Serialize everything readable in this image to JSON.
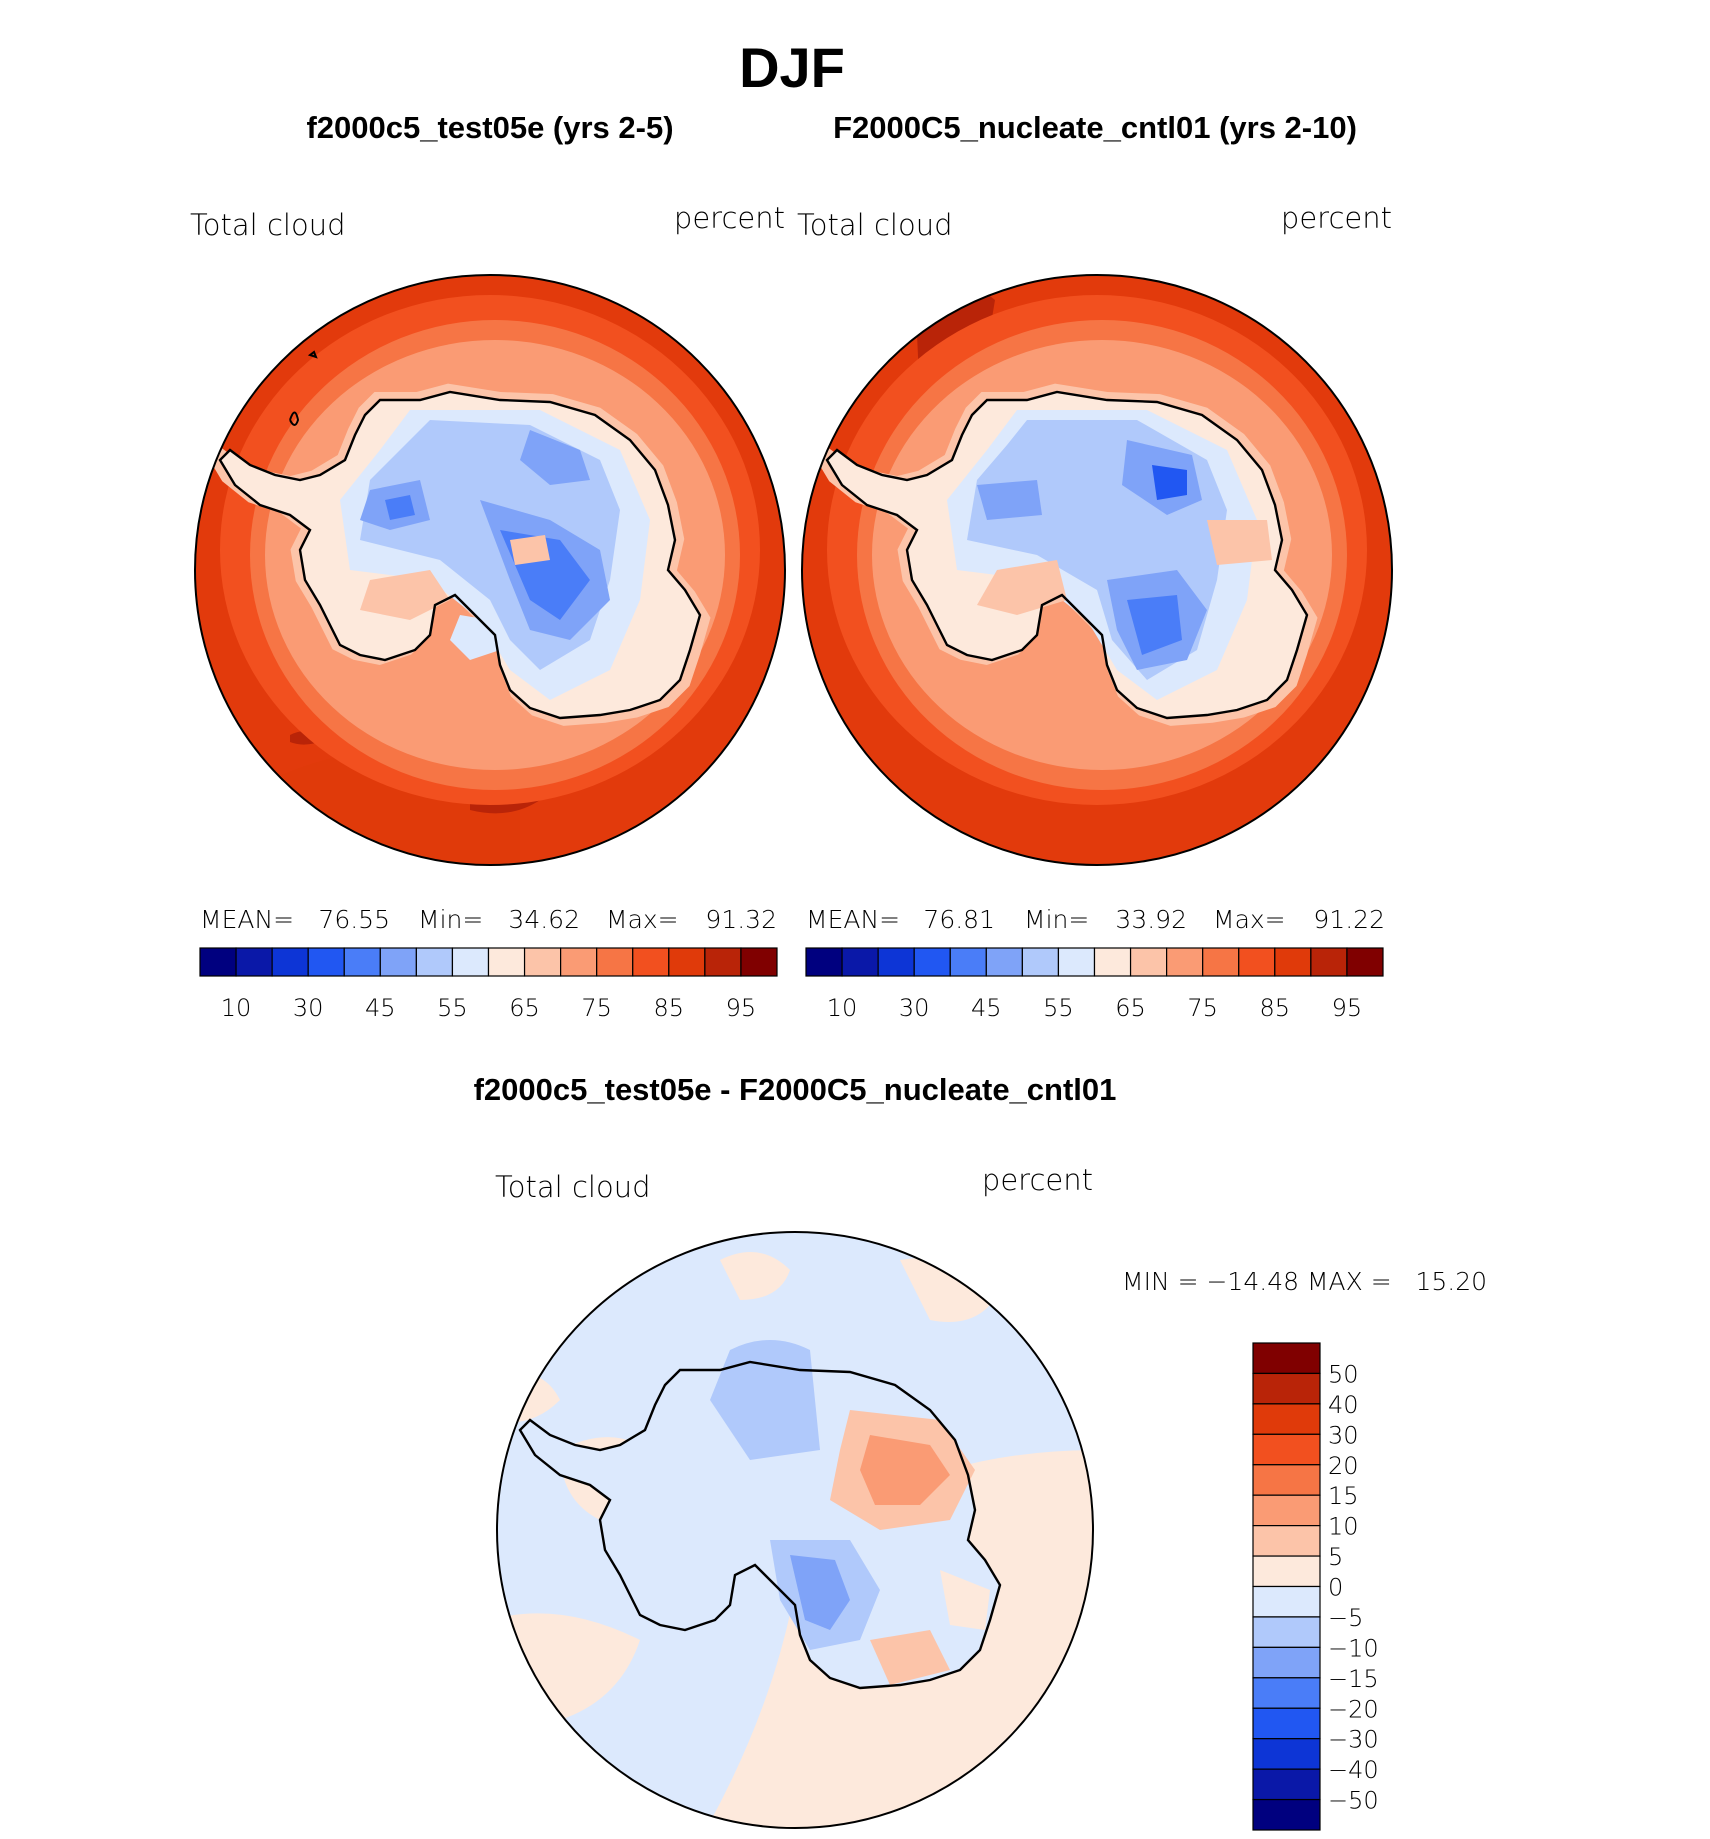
{
  "figure": {
    "title": "DJF",
    "diff_title": "f2000c5_test05e - F2000C5_nucleate_cntl01"
  },
  "colors": {
    "levels": [
      "#00007f",
      "#0a18a8",
      "#0d35d6",
      "#2157f2",
      "#4a7df8",
      "#7fa3f8",
      "#b0c9fb",
      "#dce9fd",
      "#fde9dc",
      "#fcc4a9",
      "#fa9b74",
      "#f67545",
      "#f2501f",
      "#e03a0a",
      "#b92408",
      "#800000"
    ],
    "ocean_high": "#e23a0c",
    "ocean_mid": "#f2501f",
    "ocean_dark": "#b92408"
  },
  "chart_data": [
    {
      "type": "heatmap",
      "projection": "south-polar-stereographic",
      "title": "f2000c5_test05e (yrs 2-5)",
      "left_label": "Total cloud",
      "right_label": "percent",
      "stats": {
        "mean_label": "MEAN=",
        "mean": "76.55",
        "min_label": "Min=",
        "min": "34.62",
        "max_label": "Max=",
        "max": "91.32"
      },
      "colorbar": {
        "orientation": "horizontal",
        "tick_labels": [
          "10",
          "30",
          "45",
          "55",
          "65",
          "75",
          "85",
          "95"
        ]
      }
    },
    {
      "type": "heatmap",
      "projection": "south-polar-stereographic",
      "title": "F2000C5_nucleate_cntl01 (yrs 2-10)",
      "left_label": "Total cloud",
      "right_label": "percent",
      "stats": {
        "mean_label": "MEAN=",
        "mean": "76.81",
        "min_label": "Min=",
        "min": "33.92",
        "max_label": "Max=",
        "max": "91.22"
      },
      "colorbar": {
        "orientation": "horizontal",
        "tick_labels": [
          "10",
          "30",
          "45",
          "55",
          "65",
          "75",
          "85",
          "95"
        ]
      }
    },
    {
      "type": "heatmap",
      "projection": "south-polar-stereographic",
      "title": "f2000c5_test05e - F2000C5_nucleate_cntl01",
      "left_label": "Total cloud",
      "right_label": "percent",
      "range_text": "MIN = −14.48 MAX =   15.20",
      "min": -14.48,
      "max": 15.2,
      "colorbar": {
        "orientation": "vertical",
        "levels": [
          50,
          40,
          30,
          20,
          15,
          10,
          5,
          0,
          -5,
          -10,
          -15,
          -20,
          -30,
          -40,
          -50
        ],
        "tick_labels": [
          "50",
          "40",
          "30",
          "20",
          "15",
          "10",
          "5",
          "0",
          "−5",
          "−10",
          "−15",
          "−20",
          "−30",
          "−40",
          "−50"
        ]
      }
    }
  ]
}
